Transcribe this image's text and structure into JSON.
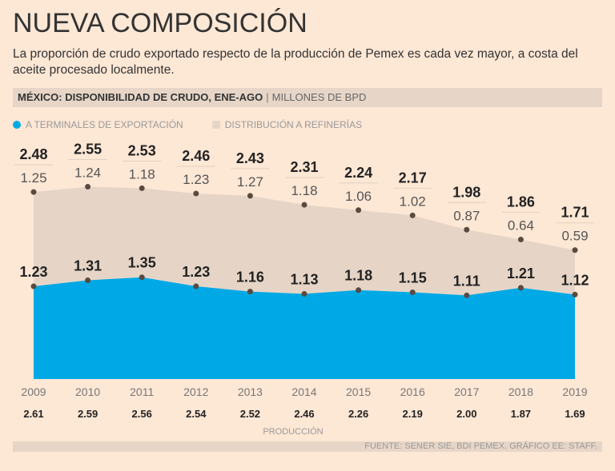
{
  "header": {
    "title": "NUEVA COMPOSICIÓN",
    "subtitle": "La proporción de crudo exportado respecto de la producción de Pemex es cada vez mayor, a costa del aceite procesado localmente.",
    "band_title": "MÉXICO: DISPONIBILIDAD DE CRUDO, ENE-AGO",
    "band_unit": "MILLONES DE BPD"
  },
  "footer": {
    "source": "FUENTE: SENER SIE, BDI PEMEX. GRÁFICO EE: STAFF."
  },
  "colors": {
    "export": "#00a9e6",
    "refineries": "#e6d5c6",
    "background": "#fde7d5",
    "points": "#5a4a40"
  },
  "chart_data": {
    "type": "area",
    "stacked": true,
    "legend_position": "top-left",
    "grid": false,
    "x": [
      "2009",
      "2010",
      "2011",
      "2012",
      "2013",
      "2014",
      "2015",
      "2016",
      "2017",
      "2018",
      "2019"
    ],
    "series": [
      {
        "name": "A TERMINALES DE EXPORTACIÓN",
        "values": [
          1.23,
          1.31,
          1.35,
          1.23,
          1.16,
          1.13,
          1.18,
          1.15,
          1.11,
          1.21,
          1.12
        ]
      },
      {
        "name": "DISTRIBUCIÓN A REFINERÍAS",
        "values": [
          1.25,
          1.24,
          1.18,
          1.23,
          1.27,
          1.18,
          1.06,
          1.02,
          0.87,
          0.64,
          0.59
        ]
      }
    ],
    "totals": [
      "2.48",
      "2.55",
      "2.53",
      "2.46",
      "2.43",
      "2.31",
      "2.24",
      "2.17",
      "1.98",
      "1.86",
      "1.71"
    ],
    "production_label": "PRODUCCIÓN",
    "production": [
      "2.61",
      "2.59",
      "2.56",
      "2.54",
      "2.52",
      "2.46",
      "2.26",
      "2.19",
      "2.00",
      "1.87",
      "1.69"
    ],
    "ylim": [
      0,
      2.6
    ]
  }
}
